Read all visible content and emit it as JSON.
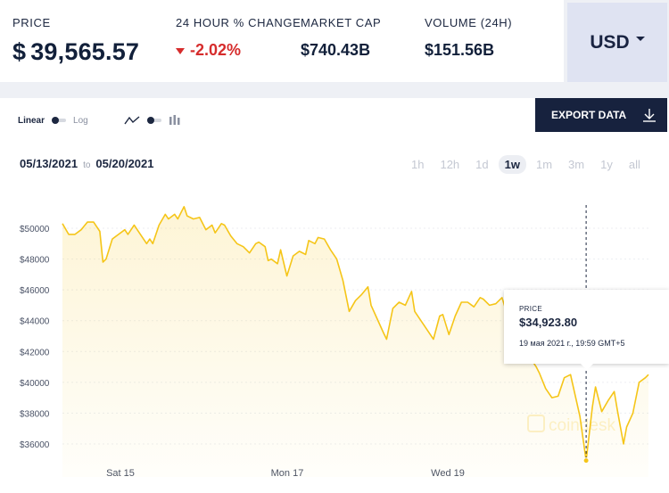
{
  "stats": {
    "price": {
      "label": "PRICE",
      "currency": "$",
      "value": "39,565.57"
    },
    "change": {
      "label": "24 HOUR % CHANGE",
      "value": "-2.02%"
    },
    "market_cap": {
      "label": "MARKET CAP",
      "value": "$740.43B"
    },
    "volume": {
      "label": "VOLUME (24H)",
      "value": "$151.56B"
    }
  },
  "currency_selector": {
    "value": "USD"
  },
  "controls": {
    "linear_label": "Linear",
    "log_label": "Log"
  },
  "export": {
    "label": "EXPORT DATA"
  },
  "date_range": {
    "from": "05/13/2021",
    "to_word": "to",
    "to": "05/20/2021"
  },
  "time_ranges": [
    "1h",
    "12h",
    "1d",
    "1w",
    "1m",
    "3m",
    "1y",
    "all"
  ],
  "active_range": "1w",
  "tooltip": {
    "label": "PRICE",
    "price": "$34,923.80",
    "date": "19 мая 2021 г., 19:59 GMT+5"
  },
  "watermark": "coindesk",
  "colors": {
    "line": "#f5c518",
    "negative": "#d62c2c",
    "dark": "#17223e"
  },
  "chart_data": {
    "type": "area",
    "y_ticks": [
      "$36000",
      "$38000",
      "$40000",
      "$42000",
      "$44000",
      "$46000",
      "$48000",
      "$50000"
    ],
    "x_ticks": [
      "Sat 15",
      "Mon 17",
      "Wed 19"
    ],
    "ylim": [
      35000,
      51500
    ],
    "points": [
      [
        0,
        50300
      ],
      [
        2,
        49600
      ],
      [
        4,
        49600
      ],
      [
        6,
        49900
      ],
      [
        8,
        50400
      ],
      [
        10,
        50400
      ],
      [
        12,
        49800
      ],
      [
        13,
        47800
      ],
      [
        14,
        48000
      ],
      [
        16,
        49300
      ],
      [
        18,
        49600
      ],
      [
        20,
        49900
      ],
      [
        21,
        49600
      ],
      [
        23,
        50200
      ],
      [
        25,
        49600
      ],
      [
        27,
        49000
      ],
      [
        28,
        49300
      ],
      [
        29,
        49000
      ],
      [
        31,
        50200
      ],
      [
        33,
        50900
      ],
      [
        34,
        50600
      ],
      [
        36,
        50900
      ],
      [
        37,
        50600
      ],
      [
        39,
        51400
      ],
      [
        40,
        50800
      ],
      [
        42,
        50600
      ],
      [
        44,
        50700
      ],
      [
        46,
        49900
      ],
      [
        48,
        50200
      ],
      [
        49,
        49700
      ],
      [
        51,
        50300
      ],
      [
        52,
        50200
      ],
      [
        54,
        49500
      ],
      [
        56,
        49000
      ],
      [
        58,
        48800
      ],
      [
        60,
        48400
      ],
      [
        62,
        49000
      ],
      [
        63,
        49100
      ],
      [
        65,
        48800
      ],
      [
        66,
        47900
      ],
      [
        67,
        48000
      ],
      [
        69,
        47700
      ],
      [
        70,
        48600
      ],
      [
        72,
        46900
      ],
      [
        74,
        48200
      ],
      [
        76,
        48500
      ],
      [
        78,
        48300
      ],
      [
        79,
        49200
      ],
      [
        81,
        49000
      ],
      [
        82,
        49400
      ],
      [
        84,
        49300
      ],
      [
        86,
        48600
      ],
      [
        88,
        48000
      ],
      [
        90,
        46600
      ],
      [
        92,
        44600
      ],
      [
        94,
        45300
      ],
      [
        96,
        45700
      ],
      [
        98,
        46200
      ],
      [
        99,
        45000
      ],
      [
        101,
        44100
      ],
      [
        103,
        43200
      ],
      [
        104,
        42800
      ],
      [
        106,
        44800
      ],
      [
        108,
        45200
      ],
      [
        110,
        45000
      ],
      [
        112,
        45900
      ],
      [
        113,
        44600
      ],
      [
        115,
        44000
      ],
      [
        117,
        43400
      ],
      [
        119,
        42800
      ],
      [
        121,
        44300
      ],
      [
        122,
        44400
      ],
      [
        124,
        43100
      ],
      [
        126,
        44300
      ],
      [
        128,
        45200
      ],
      [
        130,
        45200
      ],
      [
        132,
        44900
      ],
      [
        134,
        45500
      ],
      [
        135,
        45400
      ],
      [
        137,
        45000
      ],
      [
        139,
        45100
      ],
      [
        141,
        45500
      ],
      [
        143,
        44200
      ],
      [
        144,
        43800
      ],
      [
        146,
        43600
      ],
      [
        148,
        42200
      ],
      [
        150,
        41600
      ],
      [
        152,
        41000
      ],
      [
        153,
        40600
      ],
      [
        155,
        39600
      ],
      [
        157,
        39000
      ],
      [
        159,
        39100
      ],
      [
        161,
        40300
      ],
      [
        163,
        40500
      ],
      [
        165,
        38700
      ],
      [
        166,
        37800
      ],
      [
        168,
        34923
      ],
      [
        170,
        38400
      ],
      [
        171,
        39700
      ],
      [
        173,
        38100
      ],
      [
        175,
        38800
      ],
      [
        177,
        39400
      ],
      [
        178,
        38200
      ],
      [
        180,
        36000
      ],
      [
        181,
        37100
      ],
      [
        183,
        38000
      ],
      [
        185,
        40000
      ],
      [
        187,
        40300
      ],
      [
        188,
        40500
      ]
    ]
  }
}
